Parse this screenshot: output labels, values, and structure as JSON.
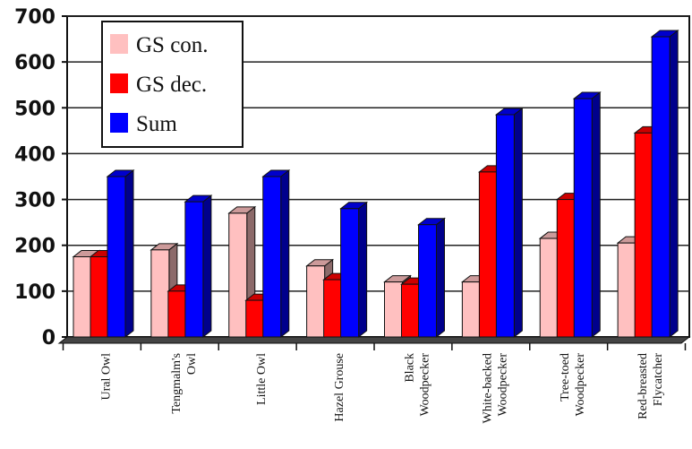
{
  "chart_data": {
    "type": "bar",
    "title": "",
    "xlabel": "",
    "ylabel": "",
    "ylim": [
      0,
      700
    ],
    "yticks": [
      0,
      100,
      200,
      300,
      400,
      500,
      600,
      700
    ],
    "grid": true,
    "legend_position": "top-left",
    "categories": [
      [
        "Ural Owl"
      ],
      [
        "Tengmalm's",
        "Owl"
      ],
      [
        "Little Owl"
      ],
      [
        "Hazel Grouse"
      ],
      [
        "Black",
        "Woodpecker"
      ],
      [
        "White-backed",
        "Woodpecker"
      ],
      [
        "Tree-toed",
        "Woodpecker"
      ],
      [
        "Red-breasted",
        "Flycatcher"
      ]
    ],
    "series": [
      {
        "name": "GS con.",
        "color": "#ffc0c0",
        "values": [
          175,
          190,
          270,
          155,
          120,
          120,
          215,
          205
        ]
      },
      {
        "name": "GS dec.",
        "color": "#ff0000",
        "values": [
          175,
          100,
          80,
          125,
          115,
          360,
          300,
          445
        ]
      },
      {
        "name": "Sum",
        "color": "#0000ff",
        "values": [
          350,
          295,
          350,
          280,
          245,
          485,
          520,
          655
        ]
      }
    ]
  }
}
